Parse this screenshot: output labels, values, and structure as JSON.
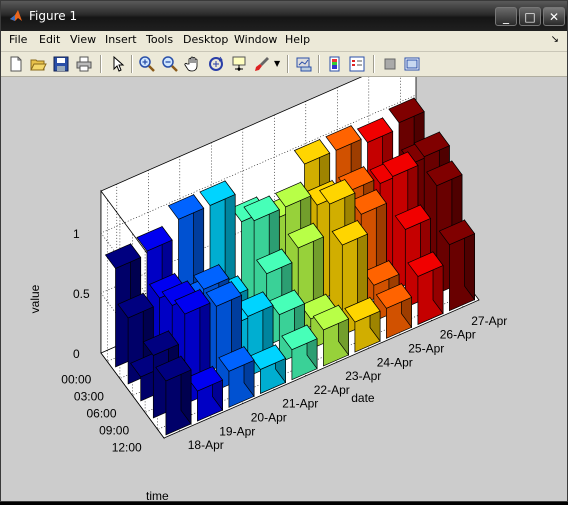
{
  "window": {
    "title": "Figure 1"
  },
  "title_buttons": {
    "minimize": "_",
    "maximize": "□",
    "close": "✕"
  },
  "menu": [
    "File",
    "Edit",
    "View",
    "Insert",
    "Tools",
    "Desktop",
    "Window",
    "Help"
  ],
  "menu_arrow": "↘",
  "toolbar_icons": [
    "new-figure",
    "open-file",
    "save",
    "print",
    "edit-plot-pointer",
    "zoom-in",
    "zoom-out",
    "pan",
    "rotate-3d",
    "data-cursor",
    "brush",
    "brush-dropdown",
    "link-plot",
    "colorbar",
    "legend",
    "hide-plot-tools",
    "show-plot-tools"
  ],
  "chart_data": {
    "type": "bar3",
    "xlabel": "date",
    "ylabel": "time",
    "zlabel": "value",
    "dates": [
      "18-Apr",
      "19-Apr",
      "20-Apr",
      "21-Apr",
      "22-Apr",
      "23-Apr",
      "24-Apr",
      "25-Apr",
      "26-Apr",
      "27-Apr"
    ],
    "times": [
      "00:00",
      "03:00",
      "06:00",
      "09:00",
      "12:00"
    ],
    "zticks": [
      "0",
      "0.5",
      "1"
    ],
    "zlim": [
      0,
      1
    ],
    "values": [
      [
        0.82,
        0.55,
        0.2,
        0.52,
        0.45
      ],
      [
        0.85,
        0.6,
        0.68,
        0.75,
        0.25
      ],
      [
        1.0,
        0.45,
        0.7,
        0.7,
        0.3
      ],
      [
        1.0,
        0.35,
        0.3,
        0.5,
        0.2
      ],
      [
        0.75,
        0.9,
        0.6,
        0.4,
        0.25
      ],
      [
        0.65,
        0.9,
        0.7,
        0.25,
        0.3
      ],
      [
        1.0,
        0.8,
        0.95,
        0.75,
        0.25
      ],
      [
        1.0,
        0.8,
        0.75,
        0.3,
        0.25
      ],
      [
        0.95,
        0.75,
        0.95,
        0.65,
        0.4
      ],
      [
        1.0,
        0.8,
        1.0,
        0.9,
        0.55
      ]
    ]
  }
}
